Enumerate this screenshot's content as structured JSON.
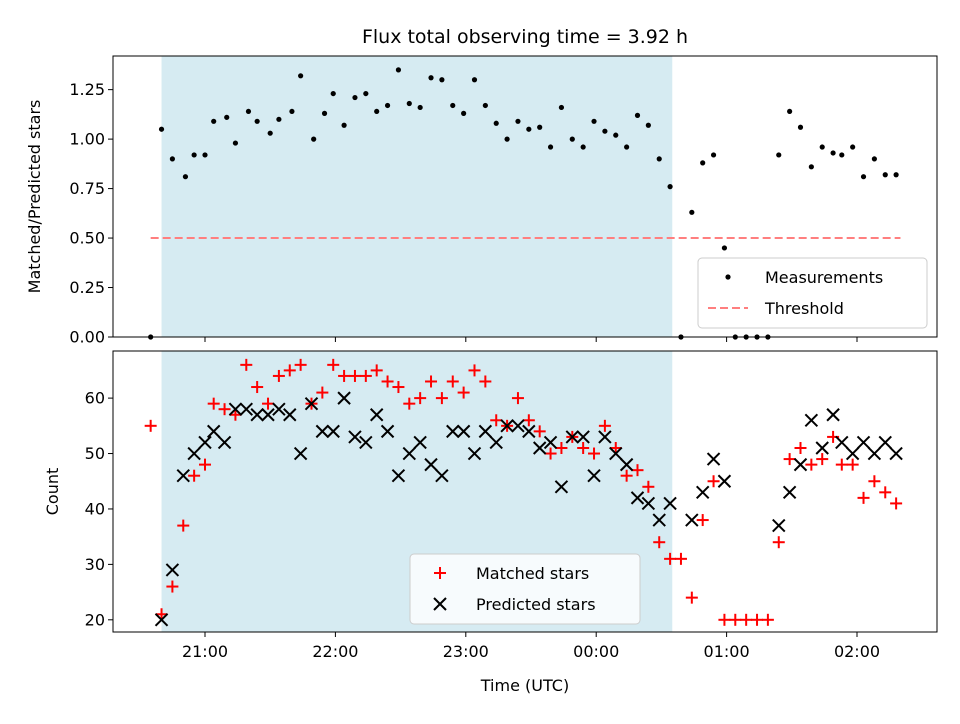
{
  "title": "Flux total observing time = 3.92 h",
  "chart_data": [
    {
      "type": "scatter",
      "panel": "top",
      "ylabel": "Matched/Predicted stars",
      "ylim": [
        0.0,
        1.42
      ],
      "yticks": [
        0.0,
        0.25,
        0.5,
        0.75,
        1.0,
        1.25
      ],
      "ytick_labels": [
        "0.00",
        "0.25",
        "0.50",
        "0.75",
        "1.00",
        "1.25"
      ],
      "threshold": 0.5,
      "shaded_range": [
        "20:40",
        "00:35"
      ],
      "series": [
        {
          "name": "Measurements",
          "marker": "dot",
          "color": "#000000",
          "x": [
            "20:35",
            "20:40",
            "20:45",
            "20:51",
            "20:55",
            "21:00",
            "21:04",
            "21:10",
            "21:14",
            "21:20",
            "21:24",
            "21:30",
            "21:34",
            "21:40",
            "21:44",
            "21:50",
            "21:55",
            "21:59",
            "22:04",
            "22:09",
            "22:14",
            "22:19",
            "22:24",
            "22:29",
            "22:34",
            "22:39",
            "22:44",
            "22:49",
            "22:54",
            "22:59",
            "23:04",
            "23:09",
            "23:14",
            "23:19",
            "23:24",
            "23:29",
            "23:34",
            "23:39",
            "23:44",
            "23:49",
            "23:54",
            "23:59",
            "00:04",
            "00:09",
            "00:14",
            "00:19",
            "00:24",
            "00:29",
            "00:34",
            "00:39",
            "00:44",
            "00:49",
            "00:54",
            "00:59",
            "01:04",
            "01:09",
            "01:14",
            "01:19",
            "01:24",
            "01:29",
            "01:34",
            "01:39",
            "01:44",
            "01:49",
            "01:53",
            "01:58",
            "02:03",
            "02:08",
            "02:13",
            "02:18"
          ],
          "y": [
            0.0,
            1.05,
            0.9,
            0.81,
            0.92,
            0.92,
            1.09,
            1.11,
            0.98,
            1.14,
            1.09,
            1.03,
            1.1,
            1.14,
            1.32,
            1.0,
            1.13,
            1.23,
            1.07,
            1.21,
            1.23,
            1.14,
            1.17,
            1.35,
            1.18,
            1.16,
            1.31,
            1.3,
            1.17,
            1.13,
            1.3,
            1.17,
            1.08,
            1.0,
            1.09,
            1.05,
            1.06,
            0.96,
            1.16,
            1.0,
            0.96,
            1.09,
            1.04,
            1.02,
            0.96,
            1.12,
            1.07,
            0.9,
            0.76,
            0.0,
            0.63,
            0.88,
            0.92,
            0.45,
            0.0,
            0.0,
            0.0,
            0.0,
            0.92,
            1.14,
            1.06,
            0.86,
            0.96,
            0.93,
            0.92,
            0.96,
            0.81,
            0.9,
            0.82,
            0.82
          ]
        },
        {
          "name": "Threshold",
          "marker": "dashed-line",
          "color": "#ff7f7f",
          "x": [
            "20:35",
            "02:20"
          ],
          "y": [
            0.5,
            0.5
          ]
        }
      ],
      "legend": {
        "placement": "lower-right",
        "entries": [
          "Measurements",
          "Threshold"
        ]
      }
    },
    {
      "type": "scatter",
      "panel": "bottom",
      "xlabel": "Time (UTC)",
      "ylabel": "Count",
      "ylim": [
        17.8,
        68.5
      ],
      "yticks": [
        20,
        30,
        40,
        50,
        60
      ],
      "xticks": [
        "21:00",
        "22:00",
        "23:00",
        "00:00",
        "01:00",
        "02:00"
      ],
      "shaded_range": [
        "20:40",
        "00:35"
      ],
      "series": [
        {
          "name": "Matched stars",
          "marker": "plus",
          "color": "#ff0000",
          "x": [
            "20:35",
            "20:40",
            "20:45",
            "20:50",
            "20:55",
            "21:00",
            "21:04",
            "21:09",
            "21:14",
            "21:19",
            "21:24",
            "21:29",
            "21:34",
            "21:39",
            "21:44",
            "21:49",
            "21:54",
            "21:59",
            "22:04",
            "22:09",
            "22:14",
            "22:19",
            "22:24",
            "22:29",
            "22:34",
            "22:39",
            "22:44",
            "22:49",
            "22:54",
            "22:59",
            "23:04",
            "23:09",
            "23:14",
            "23:19",
            "23:24",
            "23:29",
            "23:34",
            "23:39",
            "23:44",
            "23:49",
            "23:54",
            "23:59",
            "00:04",
            "00:09",
            "00:14",
            "00:19",
            "00:24",
            "00:29",
            "00:34",
            "00:39",
            "00:44",
            "00:49",
            "00:54",
            "00:59",
            "01:04",
            "01:09",
            "01:14",
            "01:19",
            "01:24",
            "01:29",
            "01:34",
            "01:39",
            "01:44",
            "01:49",
            "01:53",
            "01:58",
            "02:03",
            "02:08",
            "02:13",
            "02:18"
          ],
          "y": [
            55,
            21,
            26,
            37,
            46,
            48,
            59,
            58,
            57,
            66,
            62,
            59,
            64,
            65,
            66,
            59,
            61,
            66,
            64,
            64,
            64,
            65,
            63,
            62,
            59,
            60,
            63,
            60,
            63,
            61,
            65,
            63,
            56,
            55,
            60,
            56,
            54,
            50,
            51,
            53,
            51,
            50,
            55,
            51,
            46,
            47,
            44,
            34,
            31,
            31,
            24,
            38,
            45,
            20,
            20,
            20,
            20,
            20,
            34,
            49,
            51,
            48,
            49,
            53,
            48,
            48,
            42,
            45,
            43,
            41
          ]
        },
        {
          "name": "Predicted stars",
          "marker": "x",
          "color": "#000000",
          "x": [
            "20:40",
            "20:45",
            "20:50",
            "20:55",
            "21:00",
            "21:04",
            "21:09",
            "21:14",
            "21:19",
            "21:24",
            "21:29",
            "21:34",
            "21:39",
            "21:44",
            "21:49",
            "21:54",
            "21:59",
            "22:04",
            "22:09",
            "22:14",
            "22:19",
            "22:24",
            "22:29",
            "22:34",
            "22:39",
            "22:44",
            "22:49",
            "22:54",
            "22:59",
            "23:04",
            "23:09",
            "23:14",
            "23:19",
            "23:24",
            "23:29",
            "23:34",
            "23:39",
            "23:44",
            "23:49",
            "23:54",
            "23:59",
            "00:04",
            "00:09",
            "00:14",
            "00:19",
            "00:24",
            "00:29",
            "00:34",
            "00:44",
            "00:49",
            "00:54",
            "00:59",
            "01:24",
            "01:29",
            "01:34",
            "01:39",
            "01:44",
            "01:49",
            "01:53",
            "01:58",
            "02:03",
            "02:08",
            "02:13",
            "02:18"
          ],
          "y": [
            20,
            29,
            46,
            50,
            52,
            54,
            52,
            58,
            58,
            57,
            57,
            58,
            57,
            50,
            59,
            54,
            54,
            60,
            53,
            52,
            57,
            54,
            46,
            50,
            52,
            48,
            46,
            54,
            54,
            50,
            54,
            52,
            55,
            55,
            54,
            51,
            52,
            44,
            53,
            53,
            46,
            53,
            50,
            48,
            42,
            41,
            38,
            41,
            38,
            43,
            49,
            45,
            37,
            43,
            48,
            56,
            51,
            57,
            52,
            50,
            52,
            50,
            52,
            50
          ]
        }
      ],
      "legend": {
        "placement": "lower-center",
        "entries": [
          "Matched stars",
          "Predicted stars"
        ]
      }
    }
  ]
}
